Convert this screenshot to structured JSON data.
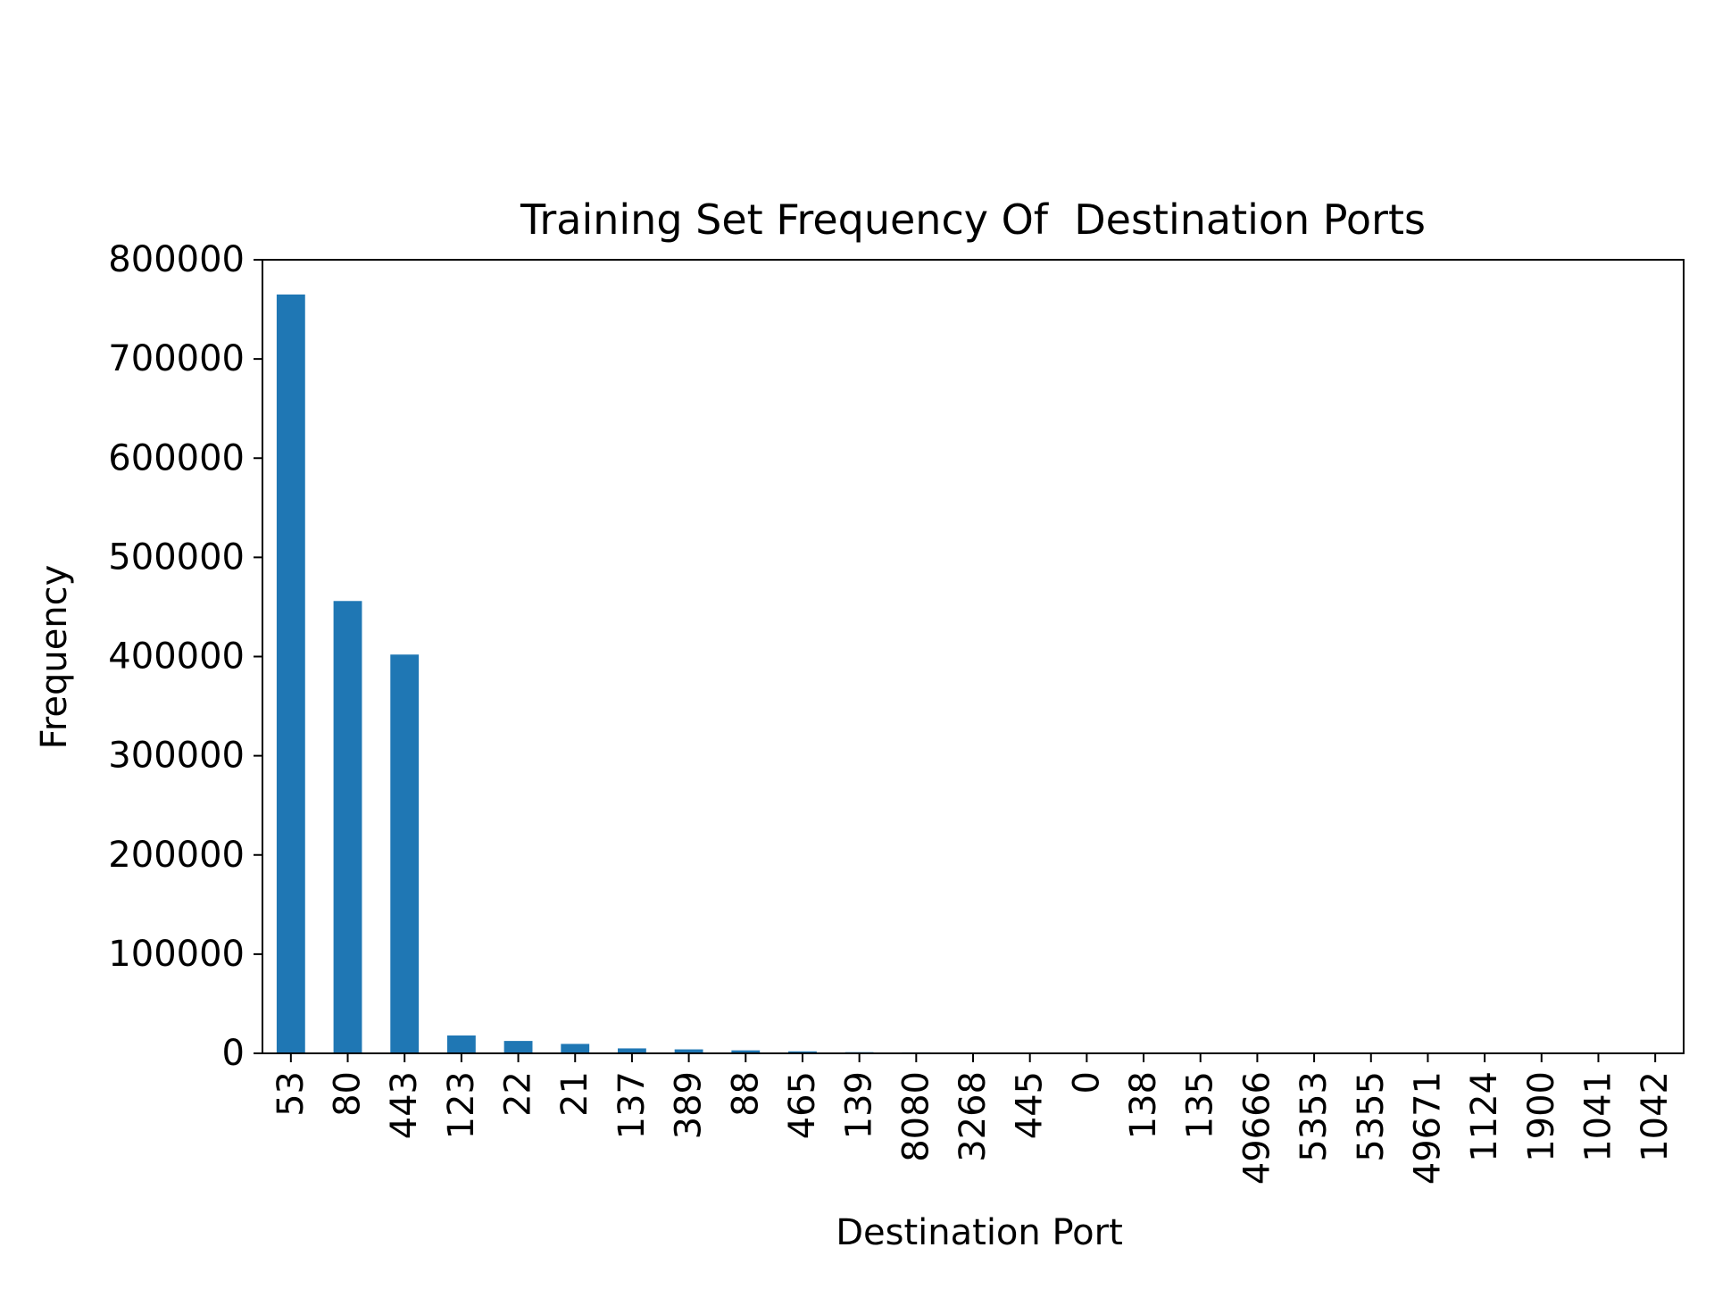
{
  "chart_data": {
    "type": "bar",
    "title": "Training Set Frequency Of  Destination Ports",
    "xlabel": "Destination Port",
    "ylabel": "Frequency",
    "categories": [
      "53",
      "80",
      "443",
      "123",
      "22",
      "21",
      "137",
      "389",
      "88",
      "465",
      "139",
      "8080",
      "3268",
      "445",
      "0",
      "138",
      "135",
      "49666",
      "5353",
      "5355",
      "49671",
      "1124",
      "1900",
      "1041",
      "1042"
    ],
    "values": [
      765000,
      456000,
      402000,
      18000,
      12500,
      9500,
      5000,
      4000,
      3000,
      2000,
      1200,
      1000,
      800,
      500,
      300,
      200,
      150,
      100,
      80,
      60,
      50,
      40,
      30,
      20,
      15
    ],
    "ylim": [
      0,
      800000
    ],
    "yticks": [
      0,
      100000,
      200000,
      300000,
      400000,
      500000,
      600000,
      700000,
      800000
    ],
    "ytick_labels": [
      "0",
      "100000",
      "200000",
      "300000",
      "400000",
      "500000",
      "600000",
      "700000",
      "800000"
    ],
    "grid": false,
    "bar_color": "#1f77b4"
  }
}
